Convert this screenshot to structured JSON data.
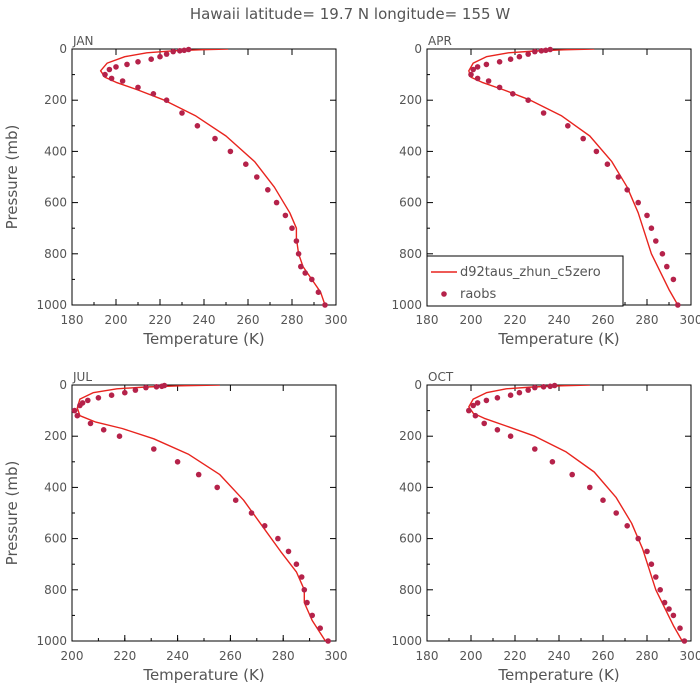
{
  "figure": {
    "title": "Hawaii  latitude= 19.7 N longitude= 155 W"
  },
  "legend": {
    "model_label": "d92taus_zhun_c5zero",
    "obs_label": "raobs",
    "model_color": "#e8241e",
    "obs_color": "#b5224a"
  },
  "chart_data": [
    {
      "type": "line",
      "panel_label": "JAN",
      "xlabel": "Temperature (K)",
      "ylabel": "Pressure (mb)",
      "xlim": [
        180,
        300
      ],
      "ylim": [
        1000,
        0
      ],
      "xticks": [
        180,
        200,
        220,
        240,
        260,
        280,
        300
      ],
      "yticks": [
        0,
        200,
        400,
        600,
        800,
        1000
      ],
      "series": [
        {
          "kind": "line",
          "x": [
            251,
            238,
            226,
            214,
            204,
            196,
            193,
            195,
            200,
            210,
            222,
            236,
            250,
            263,
            272,
            279,
            282,
            282,
            283,
            285,
            289,
            293,
            295
          ],
          "y": [
            0,
            3,
            7,
            15,
            30,
            55,
            85,
            110,
            130,
            160,
            200,
            260,
            340,
            440,
            540,
            640,
            700,
            740,
            800,
            850,
            900,
            950,
            1000
          ]
        },
        {
          "kind": "scatter",
          "x": [
            233,
            231,
            229,
            226,
            223,
            220,
            216,
            210,
            205,
            200,
            197,
            195,
            198,
            203,
            210,
            217,
            223,
            230,
            237,
            245,
            252,
            259,
            264,
            269,
            273,
            277,
            280,
            282,
            283,
            284,
            286,
            289,
            292,
            295
          ],
          "y": [
            2,
            5,
            7,
            10,
            20,
            30,
            40,
            50,
            60,
            70,
            80,
            100,
            115,
            125,
            150,
            175,
            200,
            250,
            300,
            350,
            400,
            450,
            500,
            550,
            600,
            650,
            700,
            750,
            800,
            850,
            875,
            900,
            950,
            1000
          ]
        }
      ]
    },
    {
      "type": "line",
      "panel_label": "APR",
      "xlabel": "Temperature (K)",
      "ylabel": "",
      "xlim": [
        180,
        300
      ],
      "ylim": [
        1000,
        0
      ],
      "xticks": [
        180,
        200,
        220,
        240,
        260,
        280,
        300
      ],
      "yticks": [
        0,
        200,
        400,
        600,
        800,
        1000
      ],
      "series": [
        {
          "kind": "line",
          "x": [
            256,
            242,
            229,
            217,
            207,
            201,
            199,
            200,
            205,
            215,
            227,
            241,
            254,
            264,
            271,
            276,
            279,
            282,
            286,
            290,
            294
          ],
          "y": [
            0,
            3,
            8,
            15,
            30,
            55,
            85,
            110,
            130,
            160,
            200,
            260,
            340,
            440,
            540,
            640,
            720,
            800,
            870,
            940,
            1000
          ]
        },
        {
          "kind": "scatter",
          "x": [
            236,
            234,
            232,
            229,
            226,
            222,
            218,
            213,
            207,
            203,
            201,
            200,
            203,
            208,
            213,
            219,
            226,
            233,
            244,
            251,
            257,
            262,
            267,
            271,
            276,
            280,
            282,
            284,
            287,
            289,
            292,
            294
          ],
          "y": [
            2,
            5,
            7,
            10,
            20,
            30,
            40,
            50,
            60,
            70,
            80,
            100,
            115,
            125,
            150,
            175,
            200,
            250,
            300,
            350,
            400,
            450,
            500,
            550,
            600,
            650,
            700,
            750,
            800,
            850,
            900,
            1000
          ]
        }
      ]
    },
    {
      "type": "line",
      "panel_label": "JUL",
      "xlabel": "Temperature (K)",
      "ylabel": "Pressure (mb)",
      "xlim": [
        200,
        300
      ],
      "ylim": [
        1000,
        0
      ],
      "xticks": [
        200,
        220,
        240,
        260,
        280,
        300
      ],
      "yticks": [
        0,
        200,
        400,
        600,
        800,
        1000
      ],
      "series": [
        {
          "kind": "line",
          "x": [
            256,
            241,
            228,
            217,
            208,
            203,
            202,
            203,
            209,
            219,
            231,
            244,
            256,
            265,
            272,
            279,
            285,
            288,
            288,
            291,
            296
          ],
          "y": [
            0,
            3,
            8,
            15,
            30,
            55,
            90,
            120,
            145,
            170,
            210,
            270,
            350,
            450,
            550,
            650,
            730,
            800,
            850,
            920,
            1000
          ]
        },
        {
          "kind": "scatter",
          "x": [
            235,
            234,
            232,
            228,
            224,
            220,
            215,
            210,
            206,
            204,
            203,
            201,
            202,
            207,
            212,
            218,
            231,
            240,
            248,
            255,
            262,
            268,
            273,
            278,
            282,
            285,
            287,
            288,
            289,
            291,
            294,
            297
          ],
          "y": [
            2,
            5,
            7,
            10,
            20,
            30,
            40,
            50,
            60,
            70,
            80,
            100,
            120,
            150,
            175,
            200,
            250,
            300,
            350,
            400,
            450,
            500,
            550,
            600,
            650,
            700,
            750,
            800,
            850,
            900,
            950,
            1000
          ]
        }
      ]
    },
    {
      "type": "line",
      "panel_label": "OCT",
      "xlabel": "Temperature (K)",
      "ylabel": "",
      "xlim": [
        180,
        300
      ],
      "ylim": [
        1000,
        0
      ],
      "xticks": [
        180,
        200,
        220,
        240,
        260,
        280,
        300
      ],
      "yticks": [
        0,
        200,
        400,
        600,
        800,
        1000
      ],
      "series": [
        {
          "kind": "line",
          "x": [
            254,
            241,
            228,
            216,
            207,
            201,
            199,
            201,
            206,
            216,
            229,
            243,
            256,
            266,
            273,
            278,
            281,
            284,
            288,
            292,
            296
          ],
          "y": [
            0,
            3,
            8,
            15,
            30,
            55,
            85,
            110,
            130,
            160,
            200,
            260,
            340,
            440,
            540,
            640,
            720,
            800,
            870,
            940,
            1000
          ]
        },
        {
          "kind": "scatter",
          "x": [
            238,
            236,
            233,
            229,
            226,
            222,
            218,
            212,
            207,
            203,
            201,
            199,
            202,
            206,
            212,
            218,
            229,
            237,
            246,
            254,
            260,
            266,
            271,
            276,
            280,
            282,
            284,
            286,
            288,
            290,
            292,
            295,
            297
          ],
          "y": [
            2,
            5,
            7,
            10,
            20,
            30,
            40,
            50,
            60,
            70,
            80,
            100,
            120,
            150,
            175,
            200,
            250,
            300,
            350,
            400,
            450,
            500,
            550,
            600,
            650,
            700,
            750,
            800,
            850,
            875,
            900,
            950,
            1000
          ]
        }
      ]
    }
  ]
}
